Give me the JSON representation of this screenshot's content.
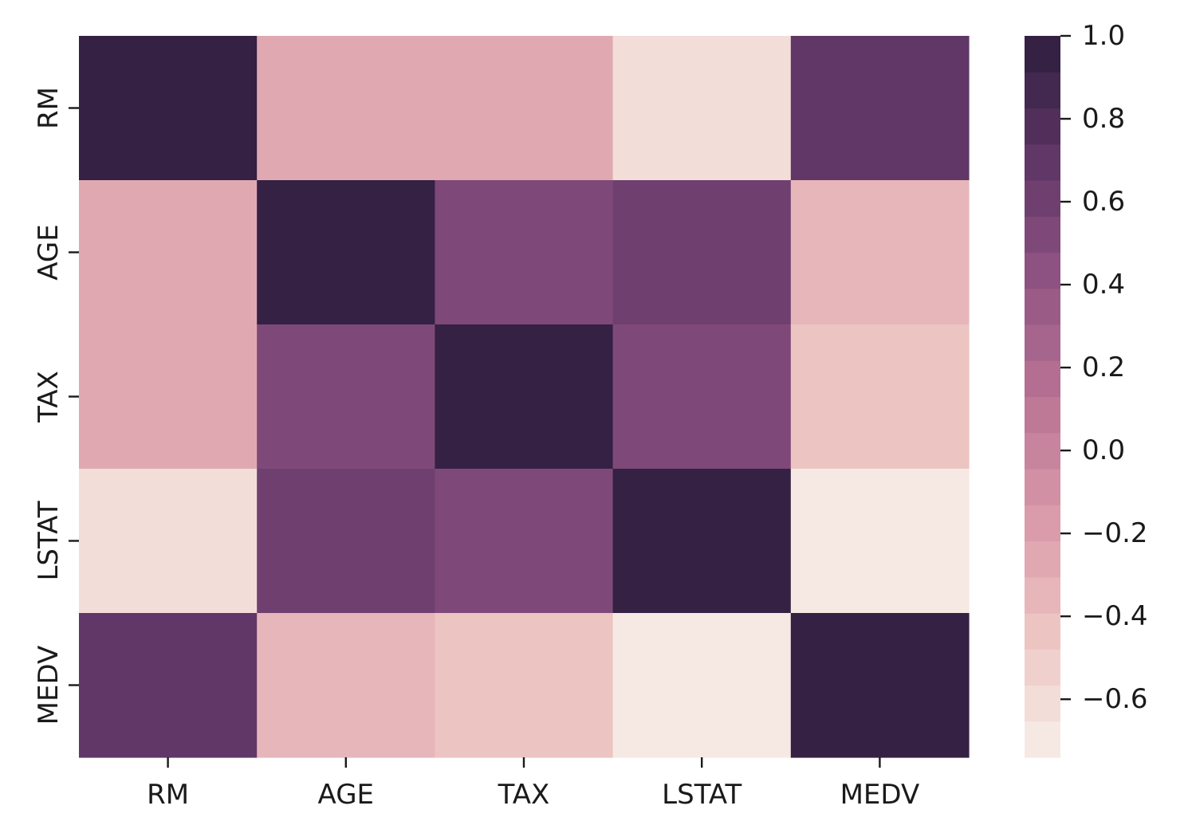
{
  "chart_data": {
    "type": "heatmap",
    "title": "",
    "xlabel": "",
    "ylabel": "",
    "row_labels": [
      "RM",
      "AGE",
      "TAX",
      "LSTAT",
      "MEDV"
    ],
    "col_labels": [
      "RM",
      "AGE",
      "TAX",
      "LSTAT",
      "MEDV"
    ],
    "values": [
      [
        1.0,
        -0.24,
        -0.29,
        -0.61,
        0.7
      ],
      [
        -0.24,
        1.0,
        0.51,
        0.6,
        -0.38
      ],
      [
        -0.29,
        0.51,
        1.0,
        0.54,
        -0.47
      ],
      [
        -0.61,
        0.6,
        0.54,
        1.0,
        -0.74
      ],
      [
        0.7,
        -0.38,
        -0.47,
        -0.74,
        1.0
      ]
    ],
    "colorbar": {
      "min": -0.74,
      "max": 1.0,
      "levels": 20,
      "ticks": [
        1.0,
        0.8,
        0.6,
        0.4,
        0.2,
        0.0,
        -0.2,
        -0.4,
        -0.6
      ],
      "tick_labels": [
        "1.0",
        "0.8",
        "0.6",
        "0.4",
        "0.2",
        "0.0",
        "−0.2",
        "−0.4",
        "−0.6"
      ]
    },
    "colormap": [
      "#f8efe9",
      "#edc6c3",
      "#d999a9",
      "#b97394",
      "#8f5483",
      "#5e3565",
      "#2d1e3e"
    ]
  }
}
